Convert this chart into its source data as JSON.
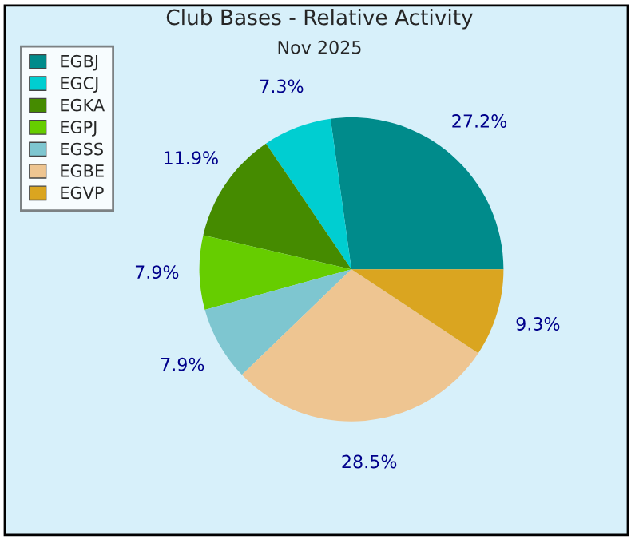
{
  "chart_data": {
    "type": "pie",
    "title": "Club Bases - Relative Activity",
    "subtitle": "Nov 2025",
    "categories": [
      "EGBJ",
      "EGCJ",
      "EGKA",
      "EGPJ",
      "EGSS",
      "EGBE",
      "EGVP"
    ],
    "values": [
      27.2,
      7.3,
      11.9,
      7.9,
      7.9,
      28.5,
      9.3
    ],
    "colors": [
      "#008b8b",
      "#00ced1",
      "#458b00",
      "#66cd00",
      "#7ec6d0",
      "#eec591",
      "#daa520"
    ],
    "value_labels": [
      "27.2%",
      "7.3%",
      "11.9%",
      "7.9%",
      "7.9%",
      "28.5%",
      "9.3%"
    ],
    "legend": "top left"
  }
}
